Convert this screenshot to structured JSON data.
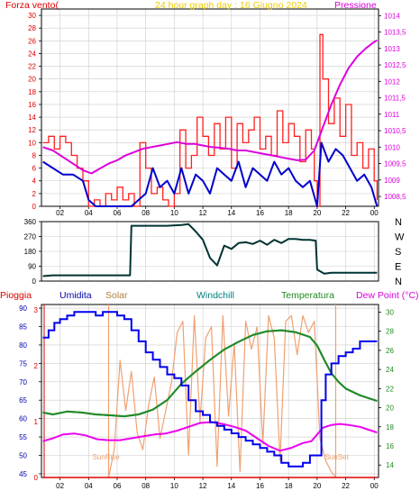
{
  "colors": {
    "wind": "#ff2020",
    "windavg": "#0000cc",
    "pressure": "#dd00dd",
    "direction": "#003333",
    "humidity": "#0000ee",
    "solar": "#f0a070",
    "windchill": "#008080",
    "temperature": "#228b22",
    "dewpoint": "#ee00ee",
    "rain": "#dd0000",
    "title": "#eecc00",
    "frame": "#000000",
    "grid": "#cccccc"
  },
  "chart_data": [
    {
      "type": "line",
      "title": "24 hour graph day : 16 Giugno 2024",
      "y_left_label": "Forza vento(",
      "y_right_label": "Pressione",
      "xticks": [
        "02",
        "04",
        "06",
        "08",
        "10",
        "12",
        "14",
        "16",
        "18",
        "20",
        "22",
        "00"
      ],
      "y_left_ticks": [
        "0",
        "2",
        "4",
        "6",
        "8",
        "10",
        "12",
        "14",
        "16",
        "18",
        "20",
        "22",
        "24",
        "26",
        "28",
        "30"
      ],
      "y_right_ticks": [
        "1008,5",
        "1009",
        "1009,5",
        "1010",
        "1010,5",
        "1011",
        "1011,5",
        "1012",
        "1012,5",
        "1013",
        "1013,5",
        "1014"
      ],
      "ylim_left": [
        0,
        31
      ],
      "ylim_right": [
        1008.2,
        1014.2
      ],
      "x_range_hours": [
        0.7,
        24.3
      ],
      "series": [
        {
          "name": "Forza vento",
          "role": "wind",
          "x": [
            0.8,
            1.2,
            1.6,
            2.0,
            2.4,
            2.8,
            3.2,
            3.6,
            4.0,
            4.4,
            4.8,
            5.2,
            5.6,
            6.0,
            6.4,
            6.8,
            7.2,
            7.6,
            8.0,
            8.4,
            8.8,
            9.2,
            9.6,
            10.0,
            10.4,
            10.8,
            11.2,
            11.6,
            12.0,
            12.4,
            12.8,
            13.2,
            13.6,
            14.0,
            14.4,
            14.8,
            15.2,
            15.6,
            16.0,
            16.4,
            16.8,
            17.2,
            17.6,
            18.0,
            18.4,
            18.8,
            19.2,
            19.6,
            19.8,
            20.0,
            20.2,
            20.4,
            20.8,
            21.2,
            21.6,
            22.0,
            22.4,
            22.8,
            23.2,
            23.6,
            24.0,
            24.2
          ],
          "values": [
            10,
            11,
            9,
            11,
            10,
            8,
            6,
            4,
            0,
            1,
            0,
            2,
            1,
            3,
            1,
            2,
            0,
            10,
            6,
            2,
            3,
            1,
            0,
            2,
            12,
            6,
            8,
            14,
            11,
            8,
            13,
            9,
            14,
            6,
            13,
            10,
            12,
            14,
            9,
            11,
            8,
            15,
            10,
            13,
            11,
            7,
            12,
            9,
            4,
            0,
            27,
            20,
            13,
            17,
            11,
            16,
            8,
            10,
            6,
            9,
            4,
            1
          ]
        },
        {
          "name": "Media vento",
          "role": "windavg",
          "x": [
            0.8,
            1.5,
            2.2,
            2.9,
            3.6,
            4.0,
            4.5,
            5.0,
            5.5,
            6.0,
            6.5,
            7.0,
            7.5,
            8.0,
            8.5,
            9.0,
            9.5,
            10.0,
            10.5,
            11.0,
            11.5,
            12.0,
            12.5,
            13.0,
            13.5,
            14.0,
            14.5,
            15.0,
            15.5,
            16.0,
            16.5,
            17.0,
            17.5,
            18.0,
            18.5,
            19.0,
            19.5,
            20.0,
            20.3,
            20.8,
            21.3,
            21.8,
            22.3,
            22.8,
            23.3,
            23.8,
            24.2
          ],
          "values": [
            7,
            6,
            5,
            5,
            4,
            1,
            0,
            0,
            0,
            0,
            0,
            0,
            1,
            2,
            6,
            3,
            4,
            2,
            6,
            2,
            5,
            4,
            2,
            6,
            5,
            4,
            7,
            3,
            6,
            5,
            4,
            7,
            5,
            6,
            4,
            3,
            4,
            0,
            10,
            7,
            9,
            8,
            6,
            4,
            5,
            3,
            0
          ]
        },
        {
          "name": "Pressione",
          "role": "pressure",
          "axis": "right",
          "x": [
            0.8,
            1.5,
            2.2,
            2.9,
            3.6,
            4.2,
            4.8,
            5.4,
            6.0,
            6.6,
            7.2,
            7.8,
            8.4,
            9.0,
            9.6,
            10.2,
            10.8,
            11.4,
            12.0,
            12.6,
            13.2,
            13.8,
            14.4,
            15.0,
            15.6,
            16.2,
            16.8,
            17.4,
            18.0,
            18.6,
            19.2,
            19.8,
            20.4,
            21.0,
            21.6,
            22.2,
            22.8,
            23.4,
            24.0,
            24.2
          ],
          "values": [
            1010,
            1009.9,
            1009.7,
            1009.5,
            1009.3,
            1009.2,
            1009.35,
            1009.5,
            1009.6,
            1009.75,
            1009.85,
            1009.95,
            1010,
            1010.05,
            1010.1,
            1010.15,
            1010.1,
            1010.1,
            1010.05,
            1010,
            1009.98,
            1009.95,
            1009.9,
            1009.9,
            1009.85,
            1009.8,
            1009.75,
            1009.7,
            1009.65,
            1009.6,
            1009.62,
            1009.9,
            1010.6,
            1011.3,
            1011.9,
            1012.4,
            1012.75,
            1013,
            1013.2,
            1013.25
          ]
        }
      ]
    },
    {
      "type": "line",
      "title": "",
      "direction_labels": [
        "N",
        "W",
        "S",
        "E",
        "N"
      ],
      "y_left_ticks": [
        "0",
        "90",
        "180",
        "270",
        "360"
      ],
      "ylim": [
        0,
        360
      ],
      "x_range_hours": [
        0.7,
        24.3
      ],
      "series": [
        {
          "name": "Direzione vento",
          "role": "direction",
          "x": [
            0.8,
            1.5,
            2.5,
            3.5,
            4.5,
            5.5,
            6.5,
            6.9,
            7.0,
            7.5,
            8.5,
            9.5,
            10.5,
            11.0,
            11.5,
            12.0,
            12.5,
            13.0,
            13.5,
            14.0,
            14.5,
            15.0,
            15.5,
            16.0,
            16.5,
            17.0,
            17.5,
            18.0,
            18.5,
            19.0,
            19.5,
            19.9,
            20.0,
            20.5,
            21.0,
            22.0,
            23.0,
            24.2
          ],
          "values": [
            30,
            35,
            35,
            35,
            35,
            35,
            35,
            35,
            335,
            335,
            335,
            335,
            340,
            345,
            300,
            250,
            140,
            95,
            215,
            195,
            230,
            235,
            225,
            245,
            220,
            250,
            230,
            255,
            255,
            250,
            250,
            245,
            70,
            45,
            50,
            50,
            50,
            50
          ]
        }
      ]
    },
    {
      "type": "line",
      "title": "",
      "labels": {
        "rain": "Pioggia",
        "humidity": "Umidita",
        "solar": "Solar",
        "windchill": "Windchill",
        "temperature": "Temperatura",
        "dewpoint": "Dew Point (°C)"
      },
      "y_left_ticks": [
        "45",
        "50",
        "55",
        "60",
        "65",
        "70",
        "75",
        "80",
        "85",
        "90"
      ],
      "y_mid_ticks": [
        "0",
        "1",
        "2",
        "3"
      ],
      "y_right_ticks": [
        "14",
        "16",
        "18",
        "20",
        "22",
        "24",
        "26",
        "28",
        "30"
      ],
      "annotations": [
        "SunRise",
        "SunSet"
      ],
      "sunrise_hour": 5.4,
      "sunset_hour": 21.3,
      "ylim_left": [
        44,
        91
      ],
      "ylim_right": [
        12.7,
        30.8
      ],
      "x_range_hours": [
        0.7,
        24.3
      ],
      "series": [
        {
          "name": "Umidita",
          "role": "humidity",
          "x": [
            0.8,
            1.2,
            1.6,
            2.0,
            2.5,
            3.0,
            3.5,
            4.0,
            4.5,
            5.0,
            5.5,
            6.0,
            6.5,
            7.0,
            7.5,
            8.0,
            8.5,
            9.0,
            9.5,
            10.0,
            10.5,
            11.0,
            11.5,
            12.0,
            12.5,
            13.0,
            13.5,
            14.0,
            14.5,
            15.0,
            15.5,
            16.0,
            16.5,
            17.0,
            17.5,
            18.0,
            18.5,
            19.0,
            19.5,
            20.0,
            20.3,
            20.6,
            21.0,
            21.5,
            22.0,
            22.5,
            23.0,
            23.5,
            24.2
          ],
          "values": [
            82,
            84,
            86,
            87,
            88,
            89,
            89,
            89,
            88,
            89,
            89,
            88,
            87,
            84,
            81,
            78,
            76,
            74,
            72,
            71,
            69,
            65,
            62,
            61,
            59,
            58,
            57,
            56,
            55,
            54,
            53,
            52,
            51,
            50,
            48,
            47,
            47,
            48,
            50,
            50,
            65,
            72,
            75,
            77,
            78,
            79,
            81,
            81,
            81
          ]
        },
        {
          "name": "Solar",
          "role": "solar",
          "axis": "mid",
          "x": [
            5.4,
            5.8,
            6.2,
            6.6,
            7.0,
            7.4,
            7.8,
            8.2,
            8.6,
            9.0,
            9.4,
            9.8,
            10.2,
            10.6,
            11.0,
            11.4,
            11.8,
            12.2,
            12.6,
            13.0,
            13.4,
            13.8,
            14.2,
            14.6,
            15.0,
            15.4,
            15.8,
            16.2,
            16.6,
            17.0,
            17.4,
            17.8,
            18.2,
            18.6,
            19.0,
            19.4,
            19.8,
            20.2,
            20.6,
            21.0,
            21.3
          ],
          "values": [
            0,
            0.5,
            2.1,
            1.2,
            1.9,
            0.8,
            0.5,
            1.3,
            1.8,
            0.7,
            1.2,
            1.7,
            2.6,
            2.8,
            0.4,
            2.9,
            1.0,
            2.5,
            2.7,
            0.2,
            2.9,
            1.1,
            2.4,
            0.1,
            2.8,
            2.3,
            2.7,
            0.6,
            2.9,
            2.5,
            0.3,
            2.8,
            2.9,
            2.2,
            2.9,
            2.6,
            2.8,
            0.7,
            0.3,
            0.1,
            0
          ]
        },
        {
          "name": "Windchill",
          "role": "windchill",
          "axis": "right",
          "x": [
            0.8,
            1.5,
            2.5,
            3.5,
            4.5,
            5.5,
            6.5,
            7.5,
            8.5,
            9.5,
            10.5,
            11.5,
            12.5,
            13.5,
            14.5,
            15.5,
            16.5,
            17.5,
            18.5,
            19.5,
            20.0,
            20.5,
            21.0,
            21.5,
            22.0,
            23.0,
            24.2
          ],
          "values": [
            19.5,
            19.3,
            19.6,
            19.5,
            19.3,
            19.2,
            19.1,
            19.3,
            19.8,
            20.8,
            22.5,
            23.8,
            25.0,
            26.1,
            26.9,
            27.6,
            28.0,
            28.1,
            27.9,
            27.4,
            26.5,
            25.0,
            23.6,
            22.7,
            22.0,
            21.3,
            20.7
          ]
        },
        {
          "name": "Temperatura",
          "role": "temperature",
          "axis": "right",
          "x": [
            0.8,
            1.5,
            2.5,
            3.5,
            4.5,
            5.5,
            6.5,
            7.5,
            8.5,
            9.5,
            10.5,
            11.5,
            12.5,
            13.5,
            14.5,
            15.5,
            16.5,
            17.5,
            18.5,
            19.5,
            20.0,
            20.5,
            21.0,
            21.5,
            22.0,
            23.0,
            24.2
          ],
          "values": [
            19.5,
            19.3,
            19.6,
            19.5,
            19.3,
            19.2,
            19.1,
            19.3,
            19.8,
            20.8,
            22.5,
            23.8,
            25.0,
            26.1,
            26.9,
            27.6,
            28.0,
            28.1,
            27.9,
            27.4,
            26.5,
            25.0,
            23.6,
            22.7,
            22.0,
            21.3,
            20.7
          ]
        },
        {
          "name": "Dew Point",
          "role": "dewpoint",
          "axis": "right",
          "x": [
            0.8,
            1.5,
            2.2,
            3.0,
            3.8,
            4.6,
            5.4,
            6.2,
            7.0,
            7.8,
            8.6,
            9.4,
            10.2,
            11.0,
            11.8,
            12.6,
            13.4,
            14.2,
            15.0,
            15.8,
            16.6,
            17.4,
            18.2,
            19.0,
            19.6,
            20.0,
            20.4,
            21.0,
            21.6,
            22.2,
            23.0,
            23.6,
            24.2
          ],
          "values": [
            16.5,
            16.8,
            17.2,
            17.3,
            17.1,
            16.7,
            16.6,
            16.6,
            16.8,
            17.0,
            17.2,
            17.3,
            17.6,
            18.0,
            18.4,
            18.5,
            18.3,
            18.0,
            17.6,
            16.8,
            16.0,
            15.5,
            15.8,
            16.3,
            16.5,
            17.2,
            17.9,
            18.2,
            18.3,
            18.2,
            18.0,
            17.7,
            17.4
          ]
        },
        {
          "name": "Pioggia",
          "role": "rain",
          "axis": "mid",
          "x": [
            0.8,
            24.2
          ],
          "values": [
            0,
            0
          ]
        }
      ]
    }
  ]
}
